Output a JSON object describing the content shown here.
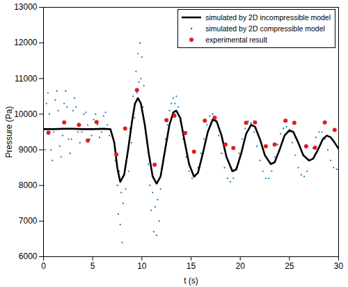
{
  "chart_data": {
    "type": "line",
    "xlabel": "t (s)",
    "ylabel": "Pressure (Pa)",
    "xlim": [
      0,
      30
    ],
    "xticks": [
      0,
      5,
      10,
      15,
      20,
      25,
      30
    ],
    "ylim": [
      6000,
      13000
    ],
    "yticks": [
      6000,
      7000,
      8000,
      9000,
      10000,
      11000,
      12000,
      13000
    ],
    "grid": false,
    "legend": "top-right",
    "series": [
      {
        "name": "simulated by 2D incompressible model",
        "type": "line",
        "marker": "none",
        "line_style": "solid",
        "color": "#000000",
        "x": [
          0,
          1,
          2,
          3,
          4,
          5,
          6,
          6.8,
          7.2,
          7.5,
          7.8,
          8.2,
          8.6,
          9.0,
          9.3,
          9.6,
          9.9,
          10.3,
          10.7,
          11.1,
          11.5,
          11.9,
          12.3,
          12.8,
          13.2,
          13.5,
          13.9,
          14.3,
          14.8,
          15.3,
          15.7,
          16.2,
          16.7,
          17.2,
          17.6,
          18.1,
          18.6,
          19.2,
          19.6,
          20.1,
          20.6,
          21.1,
          21.5,
          22.0,
          22.5,
          23.1,
          23.5,
          24.0,
          24.5,
          25.0,
          25.4,
          25.9,
          26.4,
          27.0,
          27.4,
          27.9,
          28.4,
          28.8,
          29.2,
          29.6,
          30.0
        ],
        "values": [
          9580,
          9580,
          9590,
          9590,
          9580,
          9580,
          9590,
          9580,
          9200,
          8500,
          8100,
          8300,
          9000,
          9800,
          10300,
          10450,
          10300,
          9700,
          8900,
          8250,
          8050,
          8250,
          8900,
          9700,
          10050,
          10100,
          9900,
          9300,
          8600,
          8250,
          8350,
          8900,
          9500,
          9850,
          9800,
          9400,
          8800,
          8400,
          8450,
          8900,
          9450,
          9700,
          9650,
          9300,
          8850,
          8600,
          8650,
          9000,
          9400,
          9550,
          9500,
          9200,
          8850,
          8700,
          8750,
          9000,
          9300,
          9400,
          9350,
          9200,
          9030
        ]
      },
      {
        "name": "simulated by 2D compressible model",
        "type": "scatter",
        "marker": "point",
        "color": "#0072bd",
        "x": [
          0,
          0.15,
          0.3,
          0.45,
          0.6,
          0.75,
          0.9,
          1.05,
          1.2,
          1.35,
          1.5,
          1.65,
          1.8,
          1.95,
          2.1,
          2.25,
          2.4,
          2.55,
          2.7,
          2.85,
          3.0,
          3.15,
          3.3,
          3.5,
          3.7,
          3.9,
          4.1,
          4.3,
          4.5,
          4.7,
          4.9,
          5.1,
          5.3,
          5.5,
          5.7,
          5.9,
          6.1,
          6.3,
          6.5,
          6.7,
          6.9,
          7.1,
          7.3,
          7.5,
          7.6,
          7.7,
          7.8,
          7.9,
          8.0,
          8.1,
          8.2,
          8.35,
          8.5,
          8.65,
          8.8,
          8.95,
          9.1,
          9.25,
          9.4,
          9.5,
          9.6,
          9.7,
          9.8,
          9.9,
          10.0,
          10.1,
          10.2,
          10.35,
          10.5,
          10.65,
          10.8,
          10.95,
          11.1,
          11.2,
          11.35,
          11.5,
          11.6,
          11.75,
          11.9,
          12.05,
          12.2,
          12.4,
          12.6,
          12.8,
          13.0,
          13.2,
          13.35,
          13.5,
          13.7,
          13.9,
          14.2,
          14.5,
          14.8,
          15.1,
          15.4,
          15.7,
          16.0,
          16.3,
          16.6,
          16.9,
          17.2,
          17.5,
          17.8,
          18.1,
          18.4,
          18.7,
          19.0,
          19.3,
          19.6,
          19.9,
          20.2,
          20.5,
          20.8,
          21.1,
          21.4,
          21.7,
          22.0,
          22.3,
          22.6,
          22.9,
          23.2,
          23.5,
          23.8,
          24.1,
          24.4,
          24.7,
          25.0,
          25.3,
          25.6,
          25.9,
          26.2,
          26.5,
          26.8,
          27.1,
          27.4,
          27.7,
          28.0,
          28.3,
          28.6,
          28.9,
          29.2,
          29.5,
          29.8,
          30
        ],
        "values": [
          8000,
          9000,
          10300,
          10600,
          10000,
          9000,
          8700,
          9500,
          10400,
          10650,
          10100,
          9100,
          8800,
          9400,
          10300,
          10650,
          10200,
          9300,
          8900,
          9300,
          10100,
          10450,
          10200,
          9500,
          9200,
          9500,
          10000,
          10050,
          9700,
          9300,
          9400,
          9850,
          10000,
          9700,
          9350,
          9500,
          9950,
          10050,
          9700,
          9400,
          9500,
          9300,
          8700,
          8000,
          7200,
          8400,
          6900,
          7800,
          6400,
          7500,
          8300,
          7900,
          8800,
          8400,
          9600,
          9200,
          10500,
          9900,
          11200,
          10600,
          11700,
          10900,
          12000,
          11000,
          11600,
          10200,
          10800,
          9600,
          9200,
          8600,
          8000,
          7300,
          7800,
          6700,
          7400,
          6600,
          7600,
          7000,
          7900,
          8500,
          8800,
          9300,
          9700,
          10100,
          10300,
          10450,
          10300,
          10500,
          10200,
          9800,
          9300,
          8800,
          8400,
          8200,
          8250,
          8500,
          8900,
          9300,
          9700,
          9950,
          10000,
          9800,
          9400,
          8900,
          8500,
          8200,
          8100,
          8200,
          8500,
          8900,
          9300,
          9600,
          9800,
          9750,
          9500,
          9100,
          8700,
          8400,
          8200,
          8200,
          8400,
          8800,
          9150,
          9450,
          9600,
          9650,
          9500,
          9200,
          8850,
          8500,
          8300,
          8250,
          8400,
          8700,
          9050,
          9350,
          9500,
          9500,
          9300,
          9000,
          8700,
          8500,
          8450,
          8450
        ]
      },
      {
        "name": "experimental result",
        "type": "scatter",
        "marker": "circle",
        "color": "#e41a1c",
        "x": [
          0.5,
          2.1,
          3.6,
          4.5,
          5.4,
          7.4,
          8.3,
          9.5,
          11.3,
          12.5,
          13.3,
          14.4,
          15.3,
          16.4,
          17.4,
          18.5,
          19.3,
          20.6,
          21.5,
          22.6,
          23.5,
          24.6,
          25.5,
          26.7,
          27.6,
          28.6,
          29.6
        ],
        "values": [
          9480,
          9770,
          9700,
          9260,
          9780,
          8870,
          9600,
          10680,
          8580,
          9830,
          9960,
          9470,
          8950,
          9820,
          9900,
          9150,
          9050,
          9760,
          9770,
          9100,
          9150,
          9820,
          9760,
          9100,
          9060,
          9770,
          9560
        ]
      }
    ]
  }
}
